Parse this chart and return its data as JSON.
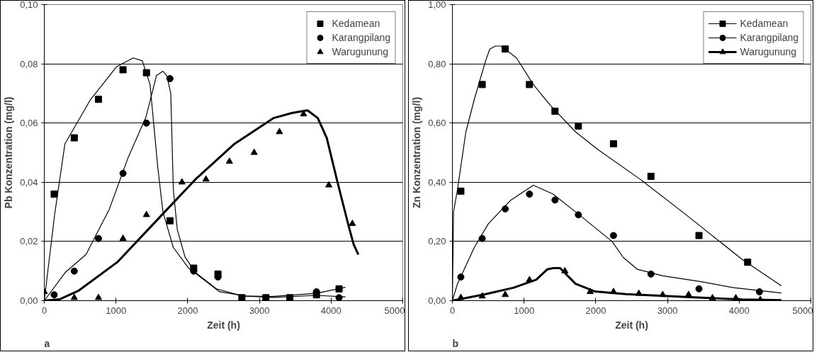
{
  "chart_data": [
    {
      "type": "scatter",
      "xlabel": "Zeit (h)",
      "ylabel": "Pb Konzentration (mg/l)",
      "annotations": [
        "a"
      ],
      "xlim": [
        0,
        5000
      ],
      "xticks": [
        0,
        1000,
        2000,
        3000,
        4000,
        5000
      ],
      "ylim": [
        0,
        0.1
      ],
      "yticks": [
        {
          "value": 0,
          "label": "0,00"
        },
        {
          "value": 0.02,
          "label": "0,02"
        },
        {
          "value": 0.04,
          "label": "0,04"
        },
        {
          "value": 0.06,
          "label": "0,06"
        },
        {
          "value": 0.08,
          "label": "0,08"
        },
        {
          "value": 0.1,
          "label": "0,10"
        }
      ],
      "grid": "y",
      "legend": "top right",
      "series": [
        {
          "name": "Kedamean",
          "marker": "square",
          "color": "#000000",
          "x": [
            138,
            418,
            756,
            1098,
            1425,
            1753,
            2084,
            2422,
            2756,
            3091,
            3425,
            3796,
            4111
          ],
          "values": [
            0.036,
            0.055,
            0.068,
            0.078,
            0.077,
            0.027,
            0.011,
            0.009,
            0.001,
            0.001,
            0.001,
            0.002,
            0.004
          ]
        },
        {
          "name": "Karangpilang",
          "marker": "circle",
          "color": "#000000",
          "x": [
            138,
            418,
            756,
            1098,
            1425,
            1753,
            2084,
            2422,
            3796,
            4111
          ],
          "values": [
            0.002,
            0.01,
            0.021,
            0.043,
            0.06,
            0.075,
            0.01,
            0.008,
            0.003,
            0.001
          ]
        },
        {
          "name": "Warugunung",
          "marker": "triangle",
          "color": "#000000",
          "x": [
            0,
            418,
            756,
            1098,
            1425,
            1920,
            2255,
            2582,
            2927,
            3280,
            3616,
            3968,
            4297
          ],
          "values": [
            0.003,
            0.001,
            0.001,
            0.021,
            0.029,
            0.04,
            0.041,
            0.047,
            0.05,
            0.057,
            0.063,
            0.039,
            0.026
          ]
        },
        {
          "type": "line",
          "color": "#000000",
          "x": [
            0,
            144,
            288,
            647,
            1007,
            1241,
            1367,
            1475,
            1583,
            1655,
            1799,
            2014,
            2446,
            2806,
            3165,
            3796,
            4200
          ],
          "values": [
            0,
            0.029,
            0.053,
            0.068,
            0.079,
            0.082,
            0.081,
            0.073,
            0.045,
            0.03,
            0.018,
            0.011,
            0.003,
            0.0016,
            0.0014,
            0.0025,
            0.0045
          ]
        },
        {
          "type": "line",
          "color": "#000000",
          "x": [
            0,
            291,
            582,
            909,
            1164,
            1418,
            1564,
            1655,
            1709,
            1764,
            1800,
            1855,
            1964,
            2109,
            2400,
            2764,
            3200,
            3796,
            4200
          ],
          "values": [
            0,
            0.0095,
            0.0156,
            0.031,
            0.048,
            0.062,
            0.076,
            0.0775,
            0.076,
            0.07,
            0.0375,
            0.024,
            0.0147,
            0.0095,
            0.004,
            0.0016,
            0.0011,
            0.0018,
            0.0013
          ]
        },
        {
          "type": "line",
          "color": "#000000",
          "x": [
            0,
            218,
            473,
            1018,
            1564,
            2109,
            2655,
            3200,
            3455,
            3670,
            3814,
            3939,
            4100,
            4244,
            4315,
            4380
          ],
          "values": [
            0,
            0.0005,
            0.0033,
            0.013,
            0.027,
            0.041,
            0.053,
            0.0617,
            0.0634,
            0.0643,
            0.0617,
            0.055,
            0.039,
            0.0253,
            0.019,
            0.0156
          ]
        }
      ]
    },
    {
      "type": "scatter",
      "xlabel": "Zeit (h)",
      "ylabel": "Zn Konzentration (mg/l)",
      "annotations": [
        "b"
      ],
      "xlim": [
        0,
        5000
      ],
      "xticks": [
        0,
        1000,
        2000,
        3000,
        4000,
        5000
      ],
      "ylim": [
        0,
        1
      ],
      "yticks": [
        {
          "value": 0,
          "label": "0,00"
        },
        {
          "value": 0.2,
          "label": "0,20"
        },
        {
          "value": 0.4,
          "label": "0,40"
        },
        {
          "value": 0.6,
          "label": "0,60"
        },
        {
          "value": 0.8,
          "label": "0,80"
        },
        {
          "value": 1,
          "label": "1,00"
        }
      ],
      "grid": "y",
      "legend": "top right",
      "series": [
        {
          "name": "Kedamean",
          "marker": "square",
          "line_style": "solid",
          "color": "#000000",
          "x": [
            118,
            416,
            737,
            1075,
            1431,
            1757,
            2247,
            2769,
            3439,
            4118
          ],
          "values": [
            0.37,
            0.73,
            0.85,
            0.73,
            0.64,
            0.59,
            0.53,
            0.42,
            0.22,
            0.13
          ]
        },
        {
          "name": "Karangpilang",
          "marker": "circle",
          "line_style": "solid",
          "color": "#000000",
          "x": [
            118,
            416,
            737,
            1075,
            1431,
            1757,
            2247,
            2769,
            3439,
            4282
          ],
          "values": [
            0.08,
            0.21,
            0.31,
            0.36,
            0.34,
            0.29,
            0.22,
            0.09,
            0.04,
            0.03
          ]
        },
        {
          "name": "Warugunung",
          "marker": "triangle",
          "line_style": "solid",
          "color": "#000000",
          "x": [
            118,
            416,
            737,
            1075,
            1569,
            1922,
            2247,
            2600,
            2933,
            3294,
            3627,
            3953,
            4294
          ],
          "values": [
            0.01,
            0.015,
            0.02,
            0.07,
            0.1,
            0.03,
            0.03,
            0.024,
            0.02,
            0.02,
            0.009,
            0.009,
            0.003
          ]
        },
        {
          "type": "line",
          "color": "#000000",
          "x": [
            0,
            16,
            71,
            188,
            306,
            463,
            522,
            600,
            678,
            894,
            1129,
            1365,
            1718,
            2031,
            2620,
            3208,
            4039,
            4588
          ],
          "values": [
            0,
            0.3,
            0.375,
            0.57,
            0.68,
            0.81,
            0.85,
            0.86,
            0.86,
            0.82,
            0.73,
            0.66,
            0.57,
            0.51,
            0.41,
            0.3,
            0.14,
            0.05
          ]
        },
        {
          "type": "line",
          "color": "#000000",
          "x": [
            0,
            71,
            306,
            502,
            816,
            1129,
            1404,
            1718,
            2227,
            2384,
            2580,
            2933,
            3451,
            3922,
            4588
          ],
          "values": [
            0,
            0.057,
            0.18,
            0.26,
            0.34,
            0.39,
            0.36,
            0.3,
            0.2,
            0.146,
            0.106,
            0.084,
            0.065,
            0.044,
            0.026
          ]
        },
        {
          "type": "line",
          "color": "#000000",
          "x": [
            0,
            463,
            855,
            1169,
            1325,
            1404,
            1502,
            1718,
            1992,
            2424,
            3208,
            4039,
            4588
          ],
          "values": [
            0,
            0.022,
            0.044,
            0.071,
            0.106,
            0.11,
            0.11,
            0.057,
            0.031,
            0.022,
            0.013,
            0.004,
            0.002
          ]
        }
      ]
    }
  ]
}
